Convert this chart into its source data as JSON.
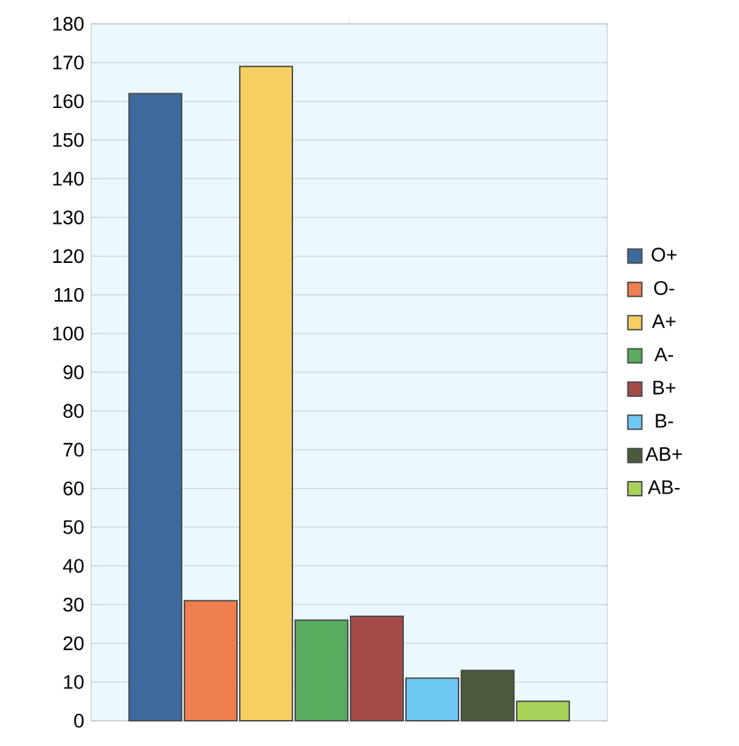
{
  "chart_data": {
    "type": "bar",
    "categories": [
      null
    ],
    "series": [
      {
        "name": "O+",
        "color": "#3d6a9e",
        "values": [
          162
        ]
      },
      {
        "name": "O-",
        "color": "#f07f4f",
        "values": [
          31
        ]
      },
      {
        "name": "A+",
        "color": "#f6cf62",
        "values": [
          169
        ]
      },
      {
        "name": "A-",
        "color": "#5aac5e",
        "values": [
          26
        ]
      },
      {
        "name": "B+",
        "color": "#a44a48",
        "values": [
          27
        ]
      },
      {
        "name": "B-",
        "color": "#6dc9f2",
        "values": [
          11
        ]
      },
      {
        "name": "AB+",
        "color": "#4a5a3b",
        "values": [
          13
        ]
      },
      {
        "name": "AB-",
        "color": "#a8d25a",
        "values": [
          5
        ]
      }
    ],
    "ylim": [
      0,
      180
    ],
    "yticks": [
      0,
      10,
      20,
      30,
      40,
      50,
      60,
      70,
      80,
      90,
      100,
      110,
      120,
      130,
      140,
      150,
      160,
      170,
      180
    ],
    "grid": "y",
    "legend": "right"
  }
}
